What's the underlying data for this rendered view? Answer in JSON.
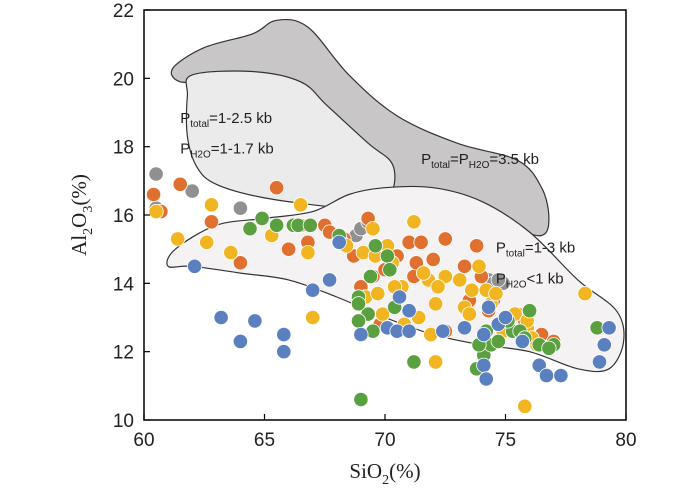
{
  "chart_data": {
    "type": "scatter",
    "xlabel": {
      "base": "SiO",
      "sub": "2",
      "suffix": "(%)"
    },
    "ylabel": {
      "base": "Al",
      "sub1": "2",
      "mid": "O",
      "sub2": "3",
      "suffix": "(%)"
    },
    "xlim": [
      60,
      80
    ],
    "ylim": [
      10,
      22
    ],
    "xticks": [
      60,
      65,
      70,
      75,
      80
    ],
    "yticks": [
      10,
      12,
      14,
      16,
      18,
      20,
      22
    ],
    "grid": false,
    "fields": [
      {
        "name": "Ptotal=PH2O=3.5 kb",
        "fill": "#c8c6c6",
        "polygon": [
          [
            61.2,
            20.3
          ],
          [
            62.5,
            20.9
          ],
          [
            64.5,
            21.3
          ],
          [
            65.5,
            21.7
          ],
          [
            66.8,
            21.5
          ],
          [
            68.5,
            20.1
          ],
          [
            70.5,
            18.9
          ],
          [
            73,
            18.1
          ],
          [
            75.5,
            17.6
          ],
          [
            76.5,
            16.8
          ],
          [
            76.8,
            15.9
          ],
          [
            76.5,
            15.4
          ],
          [
            75.2,
            15.6
          ],
          [
            73,
            15.7
          ],
          [
            71.5,
            15.8
          ],
          [
            70,
            16.2
          ],
          [
            68.3,
            18.0
          ],
          [
            66.6,
            19.2
          ],
          [
            65,
            19.6
          ],
          [
            63,
            19.9
          ],
          [
            61.5,
            19.9
          ]
        ],
        "label": {
          "parts": [
            [
              "P",
              ""
            ],
            [
              "total",
              "sub"
            ],
            [
              "=P",
              ""
            ],
            [
              "H2O",
              "sub"
            ],
            [
              "=3.5 kb",
              ""
            ]
          ],
          "at": [
            71.5,
            17.5
          ]
        }
      },
      {
        "name": "Ptotal=1-2.5 kb, PH2O=1-1.7 kb",
        "fill": "#ebebeb",
        "polygon": [
          [
            62,
            20.1
          ],
          [
            64.5,
            20.2
          ],
          [
            66.5,
            19.9
          ],
          [
            67.6,
            19.2
          ],
          [
            69.3,
            18.1
          ],
          [
            70.3,
            17.5
          ],
          [
            70.3,
            16.7
          ],
          [
            69.5,
            16.2
          ],
          [
            68.3,
            16.2
          ],
          [
            65,
            16.5
          ],
          [
            63,
            16.9
          ],
          [
            62.2,
            17.4
          ],
          [
            61.8,
            18.3
          ],
          [
            61.8,
            19.5
          ]
        ],
        "label": {
          "lines": [
            {
              "parts": [
                [
                  "P",
                  ""
                ],
                [
                  "total",
                  "sub"
                ],
                [
                  "=1-2.5 kb",
                  ""
                ]
              ],
              "at": [
                61.5,
                18.7
              ]
            },
            {
              "parts": [
                [
                  "P",
                  ""
                ],
                [
                  "H2O",
                  "sub"
                ],
                [
                  "=1-1.7 kb",
                  ""
                ]
              ],
              "at": [
                61.5,
                17.8
              ]
            }
          ]
        }
      },
      {
        "name": "Ptotal=1-3 kb, PH2O<1 kb",
        "fill": "#f4f2f2",
        "polygon": [
          [
            61.3,
            15.0
          ],
          [
            63,
            15.7
          ],
          [
            65,
            15.9
          ],
          [
            67,
            16.1
          ],
          [
            68.5,
            16.6
          ],
          [
            70,
            16.8
          ],
          [
            72,
            16.8
          ],
          [
            74,
            16.4
          ],
          [
            76,
            15.5
          ],
          [
            78,
            14.1
          ],
          [
            79.6,
            13.2
          ],
          [
            79.9,
            12.3
          ],
          [
            79.3,
            11.5
          ],
          [
            78,
            11.5
          ],
          [
            76,
            12.0
          ],
          [
            74,
            12.2
          ],
          [
            72,
            12.5
          ],
          [
            70,
            13.0
          ],
          [
            68,
            13.6
          ],
          [
            66,
            14.1
          ],
          [
            64,
            14.3
          ],
          [
            62,
            14.5
          ],
          [
            61,
            14.5
          ]
        ],
        "label": {
          "lines": [
            {
              "parts": [
                [
                  "P",
                  ""
                ],
                [
                  "total",
                  "sub"
                ],
                [
                  "=1-3 kb",
                  ""
                ]
              ],
              "at": [
                74.6,
                14.9
              ]
            },
            {
              "parts": [
                [
                  "P",
                  ""
                ],
                [
                  "H2O",
                  "sub"
                ],
                [
                  "<1 kb",
                  ""
                ]
              ],
              "at": [
                74.6,
                14.0
              ]
            }
          ]
        }
      }
    ],
    "series": [
      {
        "name": "grey",
        "color": "#909090",
        "points": [
          [
            60.5,
            17.2
          ],
          [
            60.5,
            16.2
          ],
          [
            62,
            16.7
          ],
          [
            64,
            16.2
          ],
          [
            68.8,
            15.4
          ],
          [
            69,
            15.6
          ],
          [
            69.3,
            15.8
          ],
          [
            74.3,
            14.1
          ],
          [
            74.5,
            14.0
          ],
          [
            74.9,
            14.0
          ],
          [
            74.7,
            14.1
          ]
        ]
      },
      {
        "name": "orange",
        "color": "#e07030",
        "points": [
          [
            60.4,
            16.6
          ],
          [
            61.5,
            16.9
          ],
          [
            65.5,
            16.8
          ],
          [
            60.7,
            16.1
          ],
          [
            62.8,
            15.8
          ],
          [
            64,
            14.6
          ],
          [
            66.5,
            15.7
          ],
          [
            66.8,
            15.2
          ],
          [
            67.5,
            15.7
          ],
          [
            66,
            15.0
          ],
          [
            68.3,
            15.3
          ],
          [
            68.7,
            14.8
          ],
          [
            69.3,
            15.9
          ],
          [
            69.5,
            14.2
          ],
          [
            69,
            13.9
          ],
          [
            70,
            14.4
          ],
          [
            70.5,
            14.8
          ],
          [
            71.2,
            14.2
          ],
          [
            71,
            15.2
          ],
          [
            71.5,
            15.2
          ],
          [
            71.3,
            14.6
          ],
          [
            72,
            14.7
          ],
          [
            72.5,
            15.3
          ],
          [
            73.3,
            14.5
          ],
          [
            72.5,
            12.6
          ],
          [
            73.5,
            13.5
          ],
          [
            73.8,
            15.1
          ],
          [
            74,
            14.2
          ],
          [
            74.5,
            13.5
          ],
          [
            74.3,
            13.2
          ],
          [
            75.5,
            13.1
          ],
          [
            75.8,
            12.9
          ],
          [
            76.5,
            12.5
          ],
          [
            77,
            12.3
          ],
          [
            68.2,
            15.2
          ],
          [
            67.7,
            15.5
          ],
          [
            69.8,
            12.8
          ]
        ]
      },
      {
        "name": "yellow",
        "color": "#f0b520",
        "points": [
          [
            60.5,
            16.1
          ],
          [
            62.8,
            16.3
          ],
          [
            61.4,
            15.3
          ],
          [
            62.6,
            15.2
          ],
          [
            63.6,
            14.9
          ],
          [
            66.5,
            16.3
          ],
          [
            65.3,
            15.4
          ],
          [
            66.8,
            14.9
          ],
          [
            68.4,
            15.1
          ],
          [
            69.1,
            14.9
          ],
          [
            69.5,
            15.6
          ],
          [
            70.1,
            15.1
          ],
          [
            70.3,
            14.6
          ],
          [
            71.2,
            15.8
          ],
          [
            70.7,
            13.9
          ],
          [
            71.8,
            14.1
          ],
          [
            71.4,
            13.0
          ],
          [
            72.1,
            13.4
          ],
          [
            72.5,
            14.2
          ],
          [
            73.1,
            14.1
          ],
          [
            73.6,
            13.8
          ],
          [
            73.3,
            13.3
          ],
          [
            74.2,
            13.8
          ],
          [
            74.4,
            13.4
          ],
          [
            74.9,
            12.6
          ],
          [
            75.4,
            13.1
          ],
          [
            75.9,
            12.7
          ],
          [
            76.3,
            12.2
          ],
          [
            73.9,
            14.5
          ],
          [
            74.6,
            13.7
          ],
          [
            69.2,
            13.6
          ],
          [
            69.7,
            13.7
          ],
          [
            71.6,
            14.3
          ],
          [
            72.2,
            13.9
          ],
          [
            73.5,
            13.1
          ],
          [
            76.1,
            12.4
          ],
          [
            78.3,
            13.7
          ],
          [
            69.6,
            14.8
          ],
          [
            70.8,
            12.8
          ],
          [
            71.9,
            12.5
          ],
          [
            67,
            13.0
          ],
          [
            75.8,
            10.4
          ],
          [
            69.9,
            13.1
          ],
          [
            72.1,
            11.7
          ],
          [
            70.4,
            13.9
          ],
          [
            75.9,
            12.9
          ]
        ]
      },
      {
        "name": "green",
        "color": "#5aa040",
        "points": [
          [
            64.4,
            15.6
          ],
          [
            64.9,
            15.9
          ],
          [
            65.5,
            15.7
          ],
          [
            66.2,
            15.7
          ],
          [
            66.4,
            15.7
          ],
          [
            66.9,
            15.7
          ],
          [
            68.1,
            15.4
          ],
          [
            69.6,
            15.1
          ],
          [
            70.1,
            14.8
          ],
          [
            70.2,
            14.4
          ],
          [
            69.4,
            14.2
          ],
          [
            68.9,
            13.6
          ],
          [
            69.3,
            13.1
          ],
          [
            68.9,
            12.9
          ],
          [
            69.5,
            12.6
          ],
          [
            70.4,
            13.3
          ],
          [
            71.2,
            11.7
          ],
          [
            73.8,
            11.5
          ],
          [
            74.1,
            11.9
          ],
          [
            74.4,
            12.2
          ],
          [
            75.3,
            12.6
          ],
          [
            75.6,
            12.6
          ],
          [
            76.4,
            12.2
          ],
          [
            75.1,
            12.9
          ],
          [
            76,
            13.2
          ],
          [
            74.7,
            12.3
          ],
          [
            77,
            12.2
          ],
          [
            78.8,
            12.7
          ],
          [
            74.2,
            12.6
          ],
          [
            69,
            10.6
          ],
          [
            68.9,
            13.4
          ],
          [
            73.9,
            12.2
          ],
          [
            75.8,
            12.4
          ],
          [
            76.8,
            12.1
          ]
        ]
      },
      {
        "name": "blue",
        "color": "#5a80c0",
        "points": [
          [
            62.1,
            14.5
          ],
          [
            63.2,
            13.0
          ],
          [
            64,
            12.3
          ],
          [
            64.6,
            12.9
          ],
          [
            65.8,
            12.5
          ],
          [
            65.8,
            12.0
          ],
          [
            67,
            13.8
          ],
          [
            67.7,
            14.1
          ],
          [
            68.1,
            15.2
          ],
          [
            69,
            12.5
          ],
          [
            70.1,
            12.7
          ],
          [
            70.5,
            12.6
          ],
          [
            70.6,
            13.6
          ],
          [
            71,
            12.6
          ],
          [
            71,
            13.2
          ],
          [
            72.4,
            12.6
          ],
          [
            73.3,
            12.7
          ],
          [
            74.1,
            12.5
          ],
          [
            74.1,
            11.6
          ],
          [
            74.2,
            11.2
          ],
          [
            74.7,
            12.8
          ],
          [
            75,
            13.0
          ],
          [
            76.4,
            11.6
          ],
          [
            76.7,
            11.3
          ],
          [
            77.3,
            11.3
          ],
          [
            78.9,
            11.7
          ],
          [
            79.1,
            12.2
          ],
          [
            79.3,
            12.7
          ],
          [
            75.7,
            12.3
          ],
          [
            74.3,
            13.3
          ]
        ]
      }
    ]
  }
}
